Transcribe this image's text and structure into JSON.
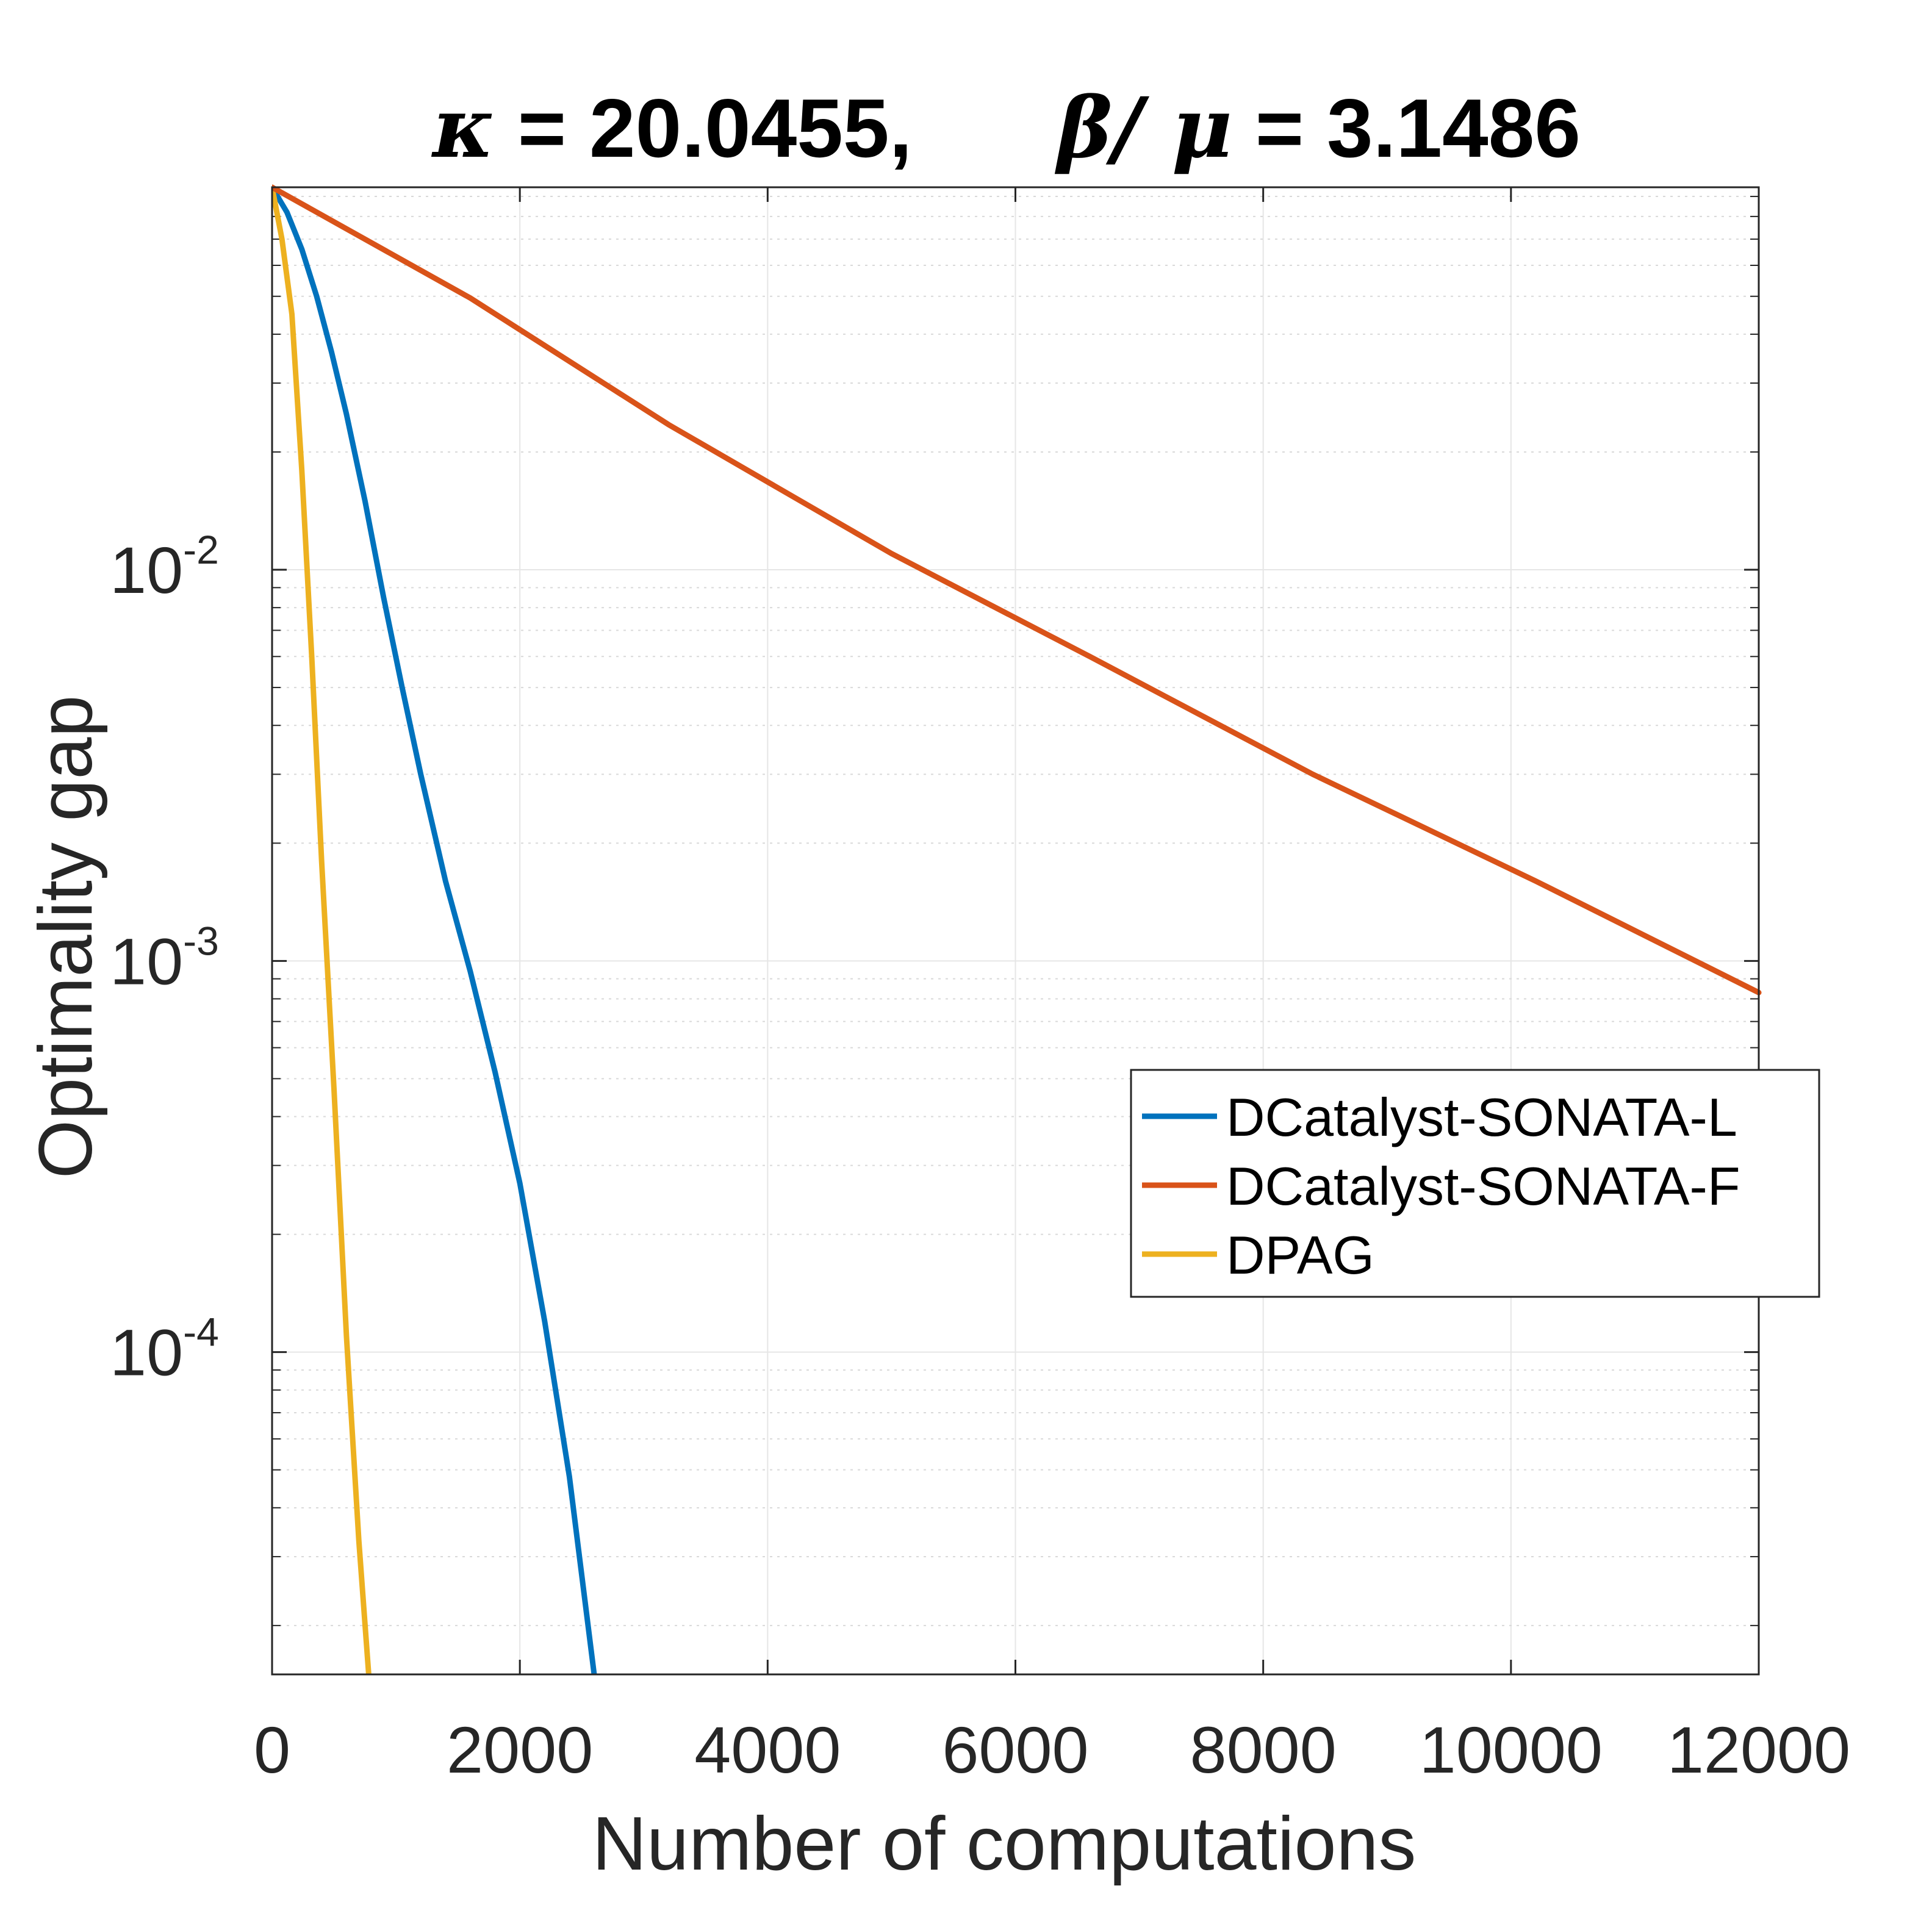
{
  "chart_data": {
    "type": "line",
    "title": {
      "kappa_symbol": "κ",
      "kappa_text": " = 20.0455,",
      "ratio_symbol": "β/ μ",
      "ratio_text": " = 3.1486"
    },
    "xlabel": "Number of computations",
    "ylabel": "Optimality gap",
    "xlim": [
      0,
      12000
    ],
    "ylim": [
      1.5e-05,
      0.095
    ],
    "yscale": "log",
    "grid": true,
    "legend_position": "middle-right",
    "x_ticks": [
      0,
      2000,
      4000,
      6000,
      8000,
      10000,
      12000
    ],
    "x_tick_labels": [
      "0",
      "2000",
      "4000",
      "6000",
      "8000",
      "10000",
      "12000"
    ],
    "y_ticks": [
      {
        "value": 0.01,
        "base": "10",
        "exp": "-2"
      },
      {
        "value": 0.001,
        "base": "10",
        "exp": "-3"
      },
      {
        "value": 0.0001,
        "base": "10",
        "exp": "-4"
      }
    ],
    "series": [
      {
        "name": "DCatalyst-SONATA-L",
        "color": "#0072BD",
        "x": [
          0,
          120,
          240,
          360,
          480,
          600,
          750,
          900,
          1050,
          1200,
          1400,
          1600,
          1800,
          2000,
          2200,
          2400,
          2600
        ],
        "y": [
          0.095,
          0.082,
          0.066,
          0.05,
          0.036,
          0.025,
          0.015,
          0.0085,
          0.005,
          0.003,
          0.0016,
          0.00094,
          0.00052,
          0.00027,
          0.00012,
          4.8e-05,
          1.5e-05
        ]
      },
      {
        "name": "DCatalyst-SONATA-F",
        "color": "#D95319",
        "x": [
          0,
          1600,
          3200,
          5000,
          6600,
          8400,
          10200,
          12000
        ],
        "y": [
          0.095,
          0.0495,
          0.0235,
          0.011,
          0.006,
          0.003,
          0.0016,
          0.00083
        ]
      },
      {
        "name": "DPAG",
        "color": "#EDB120",
        "x": [
          0,
          80,
          160,
          240,
          320,
          400,
          500,
          600,
          700,
          780
        ],
        "y": [
          0.095,
          0.07,
          0.045,
          0.018,
          0.006,
          0.0018,
          0.00047,
          0.00011,
          3.3e-05,
          1.5e-05
        ]
      }
    ]
  }
}
